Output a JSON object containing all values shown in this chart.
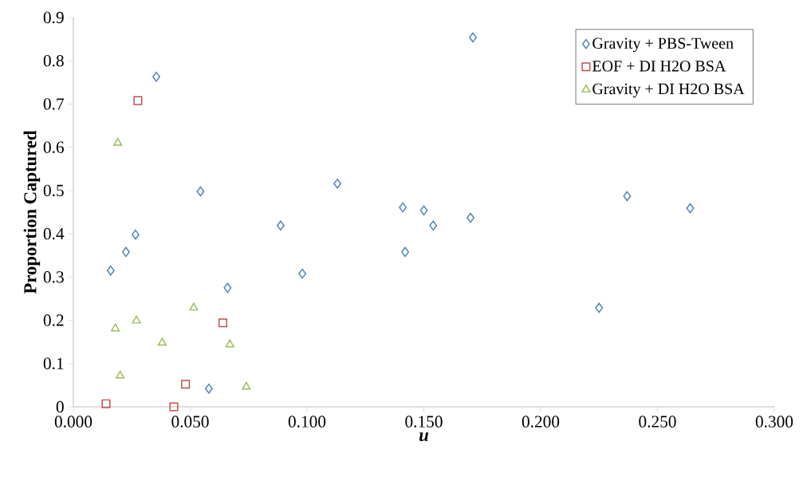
{
  "chart_data": {
    "type": "scatter",
    "xlabel": "u",
    "ylabel": "Proportion Captured",
    "xlim": [
      0,
      0.3
    ],
    "ylim": [
      0,
      0.9
    ],
    "xticks": [
      {
        "value": 0,
        "label": "0.000"
      },
      {
        "value": 0.05,
        "label": "0.050"
      },
      {
        "value": 0.1,
        "label": "0.100"
      },
      {
        "value": 0.15,
        "label": "0.150"
      },
      {
        "value": 0.2,
        "label": "0.200"
      },
      {
        "value": 0.25,
        "label": "0.250"
      },
      {
        "value": 0.3,
        "label": "0.300"
      }
    ],
    "yticks": [
      0,
      0.1,
      0.2,
      0.3,
      0.4,
      0.5,
      0.6,
      0.7,
      0.8,
      0.9
    ],
    "grid": false,
    "legend": "top right",
    "series": [
      {
        "name": "Gravity + PBS-Tween",
        "color": "#4f81bd",
        "marker": "diamond",
        "x": [
          0.016,
          0.0225,
          0.0266,
          0.0355,
          0.0544,
          0.058,
          0.066,
          0.0887,
          0.098,
          0.113,
          0.141,
          0.142,
          0.15,
          0.154,
          0.17,
          0.171,
          0.225,
          0.237,
          0.264
        ],
        "values": [
          0.315,
          0.358,
          0.398,
          0.763,
          0.498,
          0.042,
          0.275,
          0.419,
          0.308,
          0.516,
          0.461,
          0.358,
          0.454,
          0.419,
          0.437,
          0.854,
          0.229,
          0.487,
          0.459
        ]
      },
      {
        "name": "EOF + DI H2O BSA",
        "color": "#c0504d",
        "marker": "square",
        "x": [
          0.014,
          0.0276,
          0.043,
          0.048,
          0.064
        ],
        "values": [
          0.007,
          0.708,
          0,
          0.052,
          0.194
        ]
      },
      {
        "name": "Gravity + DI H2O BSA",
        "color": "#9bbb59",
        "marker": "triangle",
        "x": [
          0.019,
          0.018,
          0.02,
          0.027,
          0.038,
          0.0515,
          0.067,
          0.074
        ],
        "values": [
          0.61,
          0.181,
          0.072,
          0.199,
          0.148,
          0.229,
          0.144,
          0.046
        ]
      }
    ]
  }
}
